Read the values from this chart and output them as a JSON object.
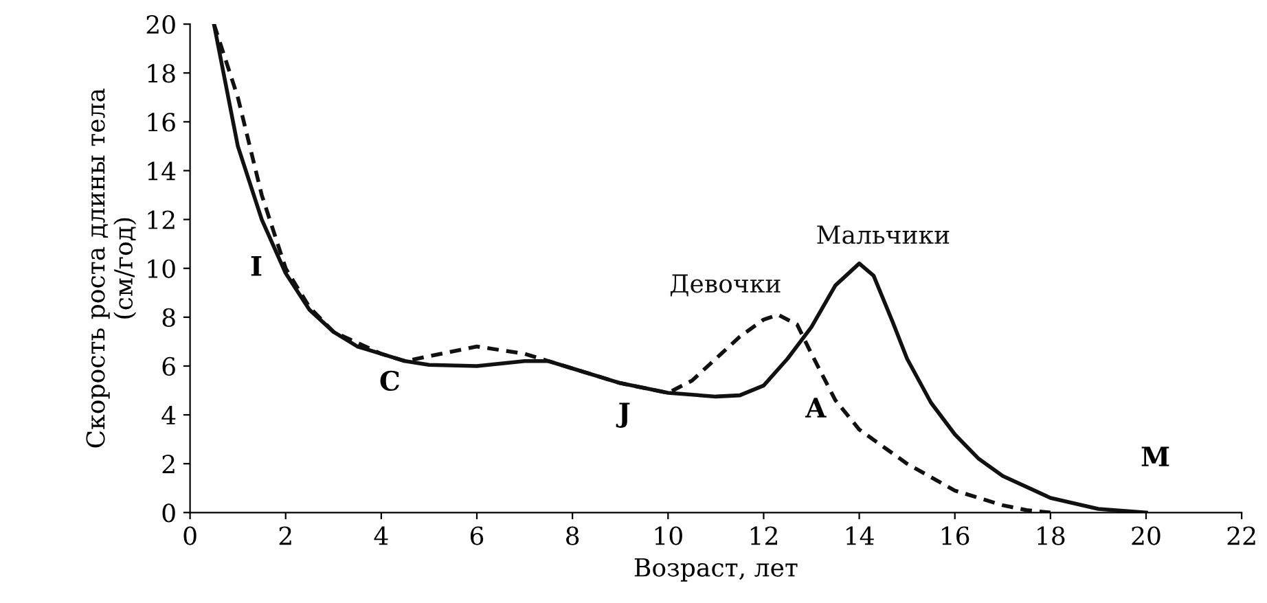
{
  "chart_data": {
    "type": "line",
    "xlabel": "Возраст, лет",
    "ylabel": "Скорость роста длины тела\n(см/год)",
    "xlim": [
      0,
      22
    ],
    "ylim": [
      0,
      20
    ],
    "xticks": [
      0,
      2,
      4,
      6,
      8,
      10,
      12,
      14,
      16,
      18,
      20,
      22
    ],
    "yticks": [
      0,
      2,
      4,
      6,
      8,
      10,
      12,
      14,
      16,
      18,
      20
    ],
    "grid": false,
    "legend": false,
    "series": [
      {
        "name": "Мальчики",
        "color": "#111111",
        "line_style": "solid",
        "x": [
          0.5,
          1,
          1.5,
          2,
          2.5,
          3,
          3.5,
          4,
          4.5,
          5,
          6,
          7,
          7.5,
          8,
          9,
          10,
          11,
          11.5,
          12,
          12.5,
          13,
          13.5,
          14,
          14.3,
          14.7,
          15,
          15.5,
          16,
          16.5,
          17,
          18,
          19,
          20
        ],
        "values": [
          20,
          15,
          12,
          9.8,
          8.3,
          7.4,
          6.8,
          6.5,
          6.2,
          6.05,
          6.0,
          6.2,
          6.2,
          5.9,
          5.3,
          4.9,
          4.75,
          4.8,
          5.2,
          6.3,
          7.6,
          9.3,
          10.2,
          9.7,
          7.8,
          6.3,
          4.5,
          3.2,
          2.2,
          1.5,
          0.6,
          0.15,
          0
        ]
      },
      {
        "name": "Девочки",
        "color": "#111111",
        "line_style": "dashed",
        "x": [
          0.5,
          1,
          1.5,
          2,
          2.5,
          3,
          4,
          4.5,
          5,
          6,
          7,
          7.5,
          8,
          9,
          10,
          10.5,
          11,
          11.5,
          12,
          12.3,
          12.7,
          13,
          13.5,
          14,
          15,
          16,
          17,
          17.5,
          18
        ],
        "values": [
          20,
          17,
          13,
          10,
          8.4,
          7.4,
          6.5,
          6.2,
          6.4,
          6.8,
          6.5,
          6.2,
          5.9,
          5.3,
          4.9,
          5.4,
          6.3,
          7.2,
          7.9,
          8.1,
          7.7,
          6.5,
          4.6,
          3.4,
          2.0,
          0.9,
          0.3,
          0.1,
          0
        ]
      }
    ],
    "annotations": [
      "I",
      "C",
      "J",
      "A",
      "M"
    ]
  }
}
